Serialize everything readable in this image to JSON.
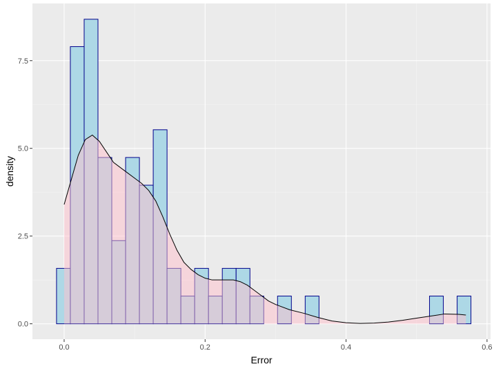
{
  "chart_data": {
    "type": "bar",
    "subtype": "histogram-with-density",
    "xlabel": "Error",
    "ylabel": "density",
    "xlim": [
      -0.045,
      0.605
    ],
    "ylim": [
      -0.44,
      9.13
    ],
    "x_ticks": [
      0.0,
      0.2,
      0.4,
      0.6
    ],
    "x_tick_labels": [
      "0.0",
      "0.2",
      "0.4",
      "0.6"
    ],
    "y_ticks": [
      0.0,
      2.5,
      5.0,
      7.5
    ],
    "y_tick_labels": [
      "0.0",
      "2.5",
      "5.0",
      "7.5"
    ],
    "grid": true,
    "legend": "none",
    "histogram": {
      "bin_width": 0.0196,
      "bin_starts": [
        -0.0108,
        0.0088,
        0.0284,
        0.048,
        0.0676,
        0.0872,
        0.1068,
        0.1264,
        0.146,
        0.1656,
        0.1852,
        0.2048,
        0.2244,
        0.244,
        0.2636,
        0.2832,
        0.3028,
        0.3224,
        0.342,
        0.3616,
        0.3812,
        0.4008,
        0.4204,
        0.44,
        0.4596,
        0.4792,
        0.4988,
        0.5184,
        0.538,
        0.5576
      ],
      "values": [
        1.58,
        7.9,
        8.68,
        4.74,
        2.37,
        4.74,
        3.95,
        5.53,
        1.58,
        0.79,
        1.58,
        0.79,
        1.58,
        1.58,
        0.79,
        0.0,
        0.79,
        0.0,
        0.79,
        0.0,
        0.0,
        0.0,
        0.0,
        0.0,
        0.0,
        0.0,
        0.0,
        0.79,
        0.0,
        0.79
      ],
      "fill": "#add8e6",
      "outline": "#00008b"
    },
    "density": {
      "x": [
        0.0,
        0.01,
        0.02,
        0.03,
        0.04,
        0.05,
        0.06,
        0.07,
        0.08,
        0.09,
        0.1,
        0.11,
        0.12,
        0.13,
        0.14,
        0.15,
        0.16,
        0.17,
        0.18,
        0.19,
        0.2,
        0.21,
        0.22,
        0.23,
        0.24,
        0.25,
        0.26,
        0.27,
        0.28,
        0.29,
        0.3,
        0.32,
        0.34,
        0.36,
        0.38,
        0.4,
        0.42,
        0.44,
        0.46,
        0.48,
        0.5,
        0.52,
        0.54,
        0.56,
        0.57
      ],
      "y": [
        3.4,
        4.1,
        4.8,
        5.25,
        5.38,
        5.2,
        4.9,
        4.6,
        4.45,
        4.3,
        4.15,
        4.0,
        3.8,
        3.5,
        3.05,
        2.55,
        2.1,
        1.75,
        1.55,
        1.4,
        1.3,
        1.25,
        1.25,
        1.25,
        1.25,
        1.2,
        1.1,
        0.95,
        0.8,
        0.65,
        0.55,
        0.4,
        0.3,
        0.18,
        0.08,
        0.03,
        0.01,
        0.02,
        0.05,
        0.1,
        0.16,
        0.22,
        0.28,
        0.27,
        0.25
      ],
      "fill": "#ffc0cb",
      "fill_opacity": 0.5,
      "line": "#000000"
    },
    "colors": {
      "panel_background": "#ebebeb",
      "grid_major": "#ffffff",
      "grid_minor": "#f5f5f5"
    }
  }
}
